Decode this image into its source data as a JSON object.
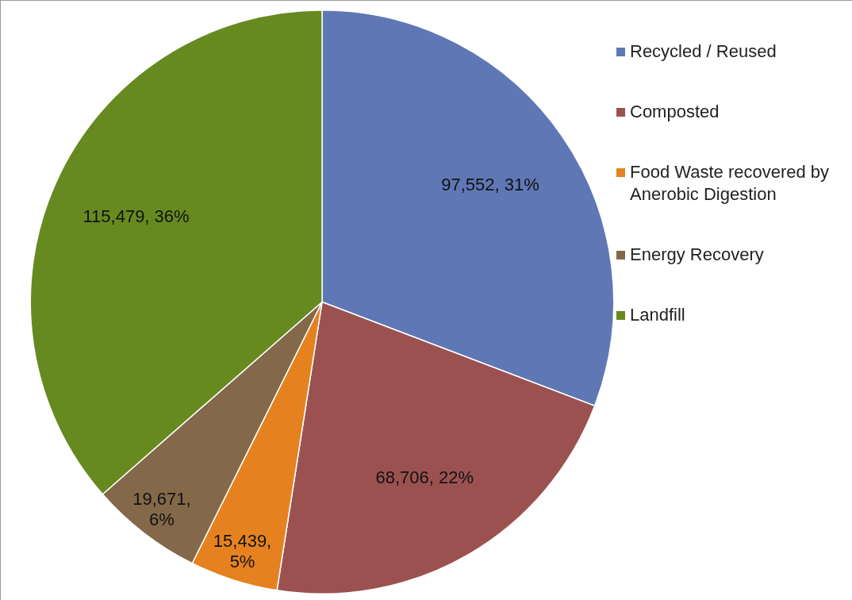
{
  "chart_data": {
    "type": "pie",
    "categories": [
      "Recycled / Reused",
      "Composted",
      "Food Waste recovered by Anerobic Digestion",
      "Energy Recovery",
      "Landfill"
    ],
    "values": [
      97552,
      68706,
      15439,
      19671,
      115479
    ],
    "colors": [
      "#5f77b5",
      "#9c5151",
      "#e5821f",
      "#83684a",
      "#678a20"
    ],
    "value_labels": [
      "97,552, 31%",
      "68,706, 22%",
      "15,439, 5%",
      "19,671, 6%",
      "115,479, 36%"
    ],
    "legend": "top right"
  }
}
